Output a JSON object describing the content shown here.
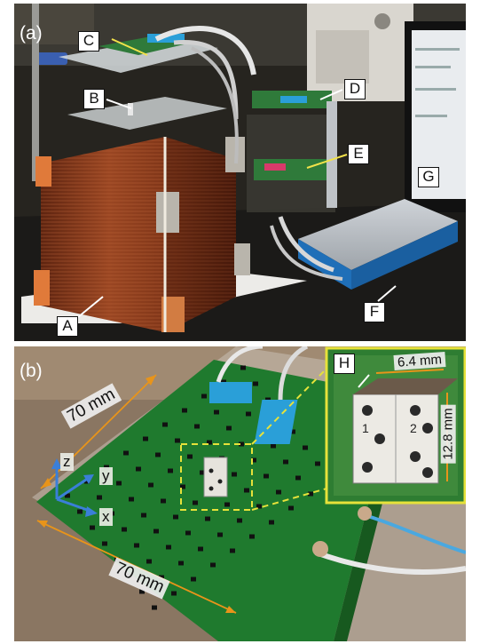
{
  "figure": {
    "panel_a": {
      "tag": "(a)",
      "callouts": {
        "a": "A",
        "b": "B",
        "c": "C",
        "d": "D",
        "e": "E",
        "f": "F",
        "g": "G"
      }
    },
    "panel_b": {
      "tag": "(b)",
      "dim_top": "70 mm",
      "dim_bottom": "70 mm",
      "axis_z": "z",
      "axis_y": "y",
      "axis_x": "x",
      "inset": {
        "callout": "H",
        "width_label": "6.4 mm",
        "height_label": "12.8 mm",
        "face_left": "1",
        "face_right": "2"
      }
    }
  },
  "colors": {
    "coil_copper": "#8a3a1c",
    "pcb_green": "#1f7a2e",
    "connector_blue": "#2a9fd8",
    "daq_blue": "#1f6fb8",
    "highlight_yellow": "#e6e23a",
    "dimension_orange": "#e8941a",
    "axis_blue": "#3a7fd8"
  }
}
